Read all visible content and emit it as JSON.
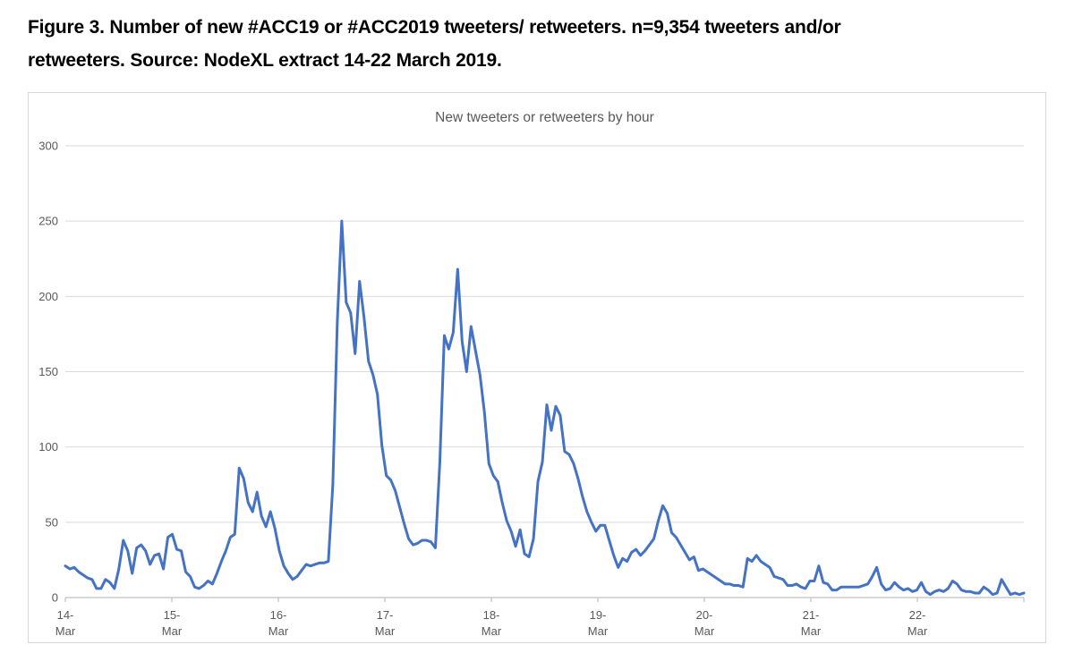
{
  "caption": {
    "line1": "Figure 3. Number of new #ACC19 or #ACC2019 tweeters/ retweeters. n=9,354 tweeters and/or",
    "line2": "retweeters. Source: NodeXL extract 14-22 March 2019."
  },
  "chart_data": {
    "type": "line",
    "title": "New tweeters or retweeters by hour",
    "xlabel": "",
    "ylabel": "",
    "x_unit": "hour",
    "x_range_text": "14 March 2019 00:00 to 22 March 2019 23:00, one point per hour",
    "x_tick_labels": [
      [
        "14-",
        "Mar"
      ],
      [
        "15-",
        "Mar"
      ],
      [
        "16-",
        "Mar"
      ],
      [
        "17-",
        "Mar"
      ],
      [
        "18-",
        "Mar"
      ],
      [
        "19-",
        "Mar"
      ],
      [
        "20-",
        "Mar"
      ],
      [
        "21-",
        "Mar"
      ],
      [
        "22-",
        "Mar"
      ]
    ],
    "y_ticks": [
      0,
      50,
      100,
      150,
      200,
      250,
      300
    ],
    "ylim": [
      0,
      300
    ],
    "grid": "horizontal",
    "legend": "none",
    "colors": {
      "line": "#4472C4",
      "gridline": "#d9d9d9",
      "axis": "#bfbfbf",
      "tick_label": "#595959",
      "title": "#595959"
    },
    "series": [
      {
        "name": "New tweeters or retweeters",
        "points_per_day": 24,
        "values": [
          21,
          19,
          20,
          17,
          15,
          13,
          12,
          6,
          6,
          12,
          10,
          6,
          19,
          38,
          31,
          16,
          33,
          35,
          31,
          22,
          28,
          29,
          19,
          40,
          42,
          32,
          31,
          17,
          14,
          7,
          6,
          8,
          11,
          9,
          16,
          24,
          31,
          40,
          42,
          86,
          79,
          63,
          57,
          70,
          54,
          47,
          57,
          46,
          31,
          21,
          16,
          12,
          14,
          18,
          22,
          21,
          22,
          23,
          23,
          24,
          75,
          183,
          250,
          196,
          189,
          162,
          210,
          186,
          157,
          148,
          135,
          101,
          81,
          78,
          71,
          60,
          49,
          39,
          35,
          36,
          38,
          38,
          37,
          33,
          90,
          174,
          165,
          176,
          218,
          170,
          150,
          180,
          164,
          148,
          123,
          89,
          81,
          77,
          63,
          51,
          44,
          34,
          45,
          29,
          27,
          39,
          77,
          90,
          128,
          111,
          127,
          121,
          97,
          95,
          89,
          79,
          67,
          57,
          50,
          44,
          48,
          48,
          38,
          28,
          20,
          26,
          24,
          30,
          32,
          28,
          31,
          35,
          39,
          51,
          61,
          56,
          43,
          40,
          35,
          30,
          25,
          27,
          18,
          19,
          17,
          15,
          13,
          11,
          9,
          9,
          8,
          8,
          7,
          26,
          24,
          28,
          24,
          22,
          20,
          14,
          13,
          12,
          8,
          8,
          9,
          7,
          6,
          11,
          11,
          21,
          10,
          9,
          5,
          5,
          7,
          7,
          7,
          7,
          7,
          8,
          9,
          14,
          20,
          9,
          5,
          6,
          10,
          7,
          5,
          6,
          4,
          5,
          10,
          4,
          2,
          4,
          5,
          4,
          6,
          11,
          9,
          5,
          4,
          4,
          3,
          3,
          7,
          5,
          2,
          3,
          12,
          7,
          2,
          3,
          2,
          3
        ]
      }
    ]
  }
}
